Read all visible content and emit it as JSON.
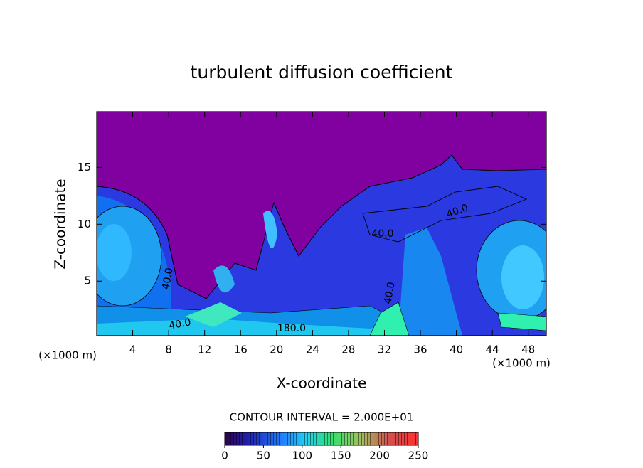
{
  "chart_data": {
    "type": "contour",
    "title": "turbulent diffusion coefficient",
    "x_label": "X-coordinate",
    "y_label": "Z-coordinate",
    "x_unit": "(×1000 m)",
    "xlim": [
      0,
      50
    ],
    "xticks": [
      4,
      8,
      12,
      16,
      20,
      24,
      28,
      32,
      36,
      40,
      44,
      48
    ],
    "ylim": [
      0.2,
      19.9
    ],
    "yticks": [
      5,
      10,
      15
    ],
    "contour_labels": [
      "40.0",
      "40.0",
      "40.0",
      "40.0",
      "40.0",
      "180.0"
    ],
    "colorbar_title": "CONTOUR INTERVAL = 2.000E+01",
    "colorbar_lim": [
      0,
      250
    ],
    "colorbar_ticks": [
      0,
      50,
      100,
      150,
      200,
      250
    ]
  }
}
